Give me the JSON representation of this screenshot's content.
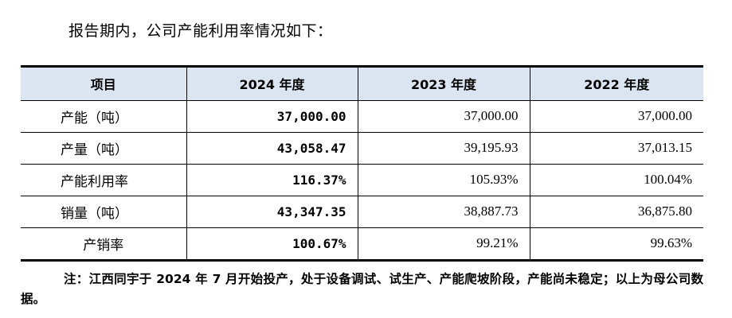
{
  "intro": "报告期内，公司产能利用率情况如下：",
  "table": {
    "headers": [
      "项目",
      "2024 年度",
      "2023 年度",
      "2022 年度"
    ],
    "rows": [
      {
        "label": "产能（吨）",
        "v2024": "37,000.00",
        "v2023": "37,000.00",
        "v2022": "37,000.00"
      },
      {
        "label": "产量（吨）",
        "v2024": "43,058.47",
        "v2023": "39,195.93",
        "v2022": "37,013.15"
      },
      {
        "label": "产能利用率",
        "v2024": "116.37%",
        "v2023": "105.93%",
        "v2022": "100.04%"
      },
      {
        "label": "销量（吨）",
        "v2024": "43,347.35",
        "v2023": "38,887.73",
        "v2022": "36,875.80"
      },
      {
        "label": "产销率",
        "v2024": "100.67%",
        "v2023": "99.21%",
        "v2022": "99.63%"
      }
    ]
  },
  "note": "注：江西同宇于 2024 年 7 月开始投产，处于设备调试、试生产、产能爬坡阶段，产能尚未稳定；以上为母公司数据。"
}
